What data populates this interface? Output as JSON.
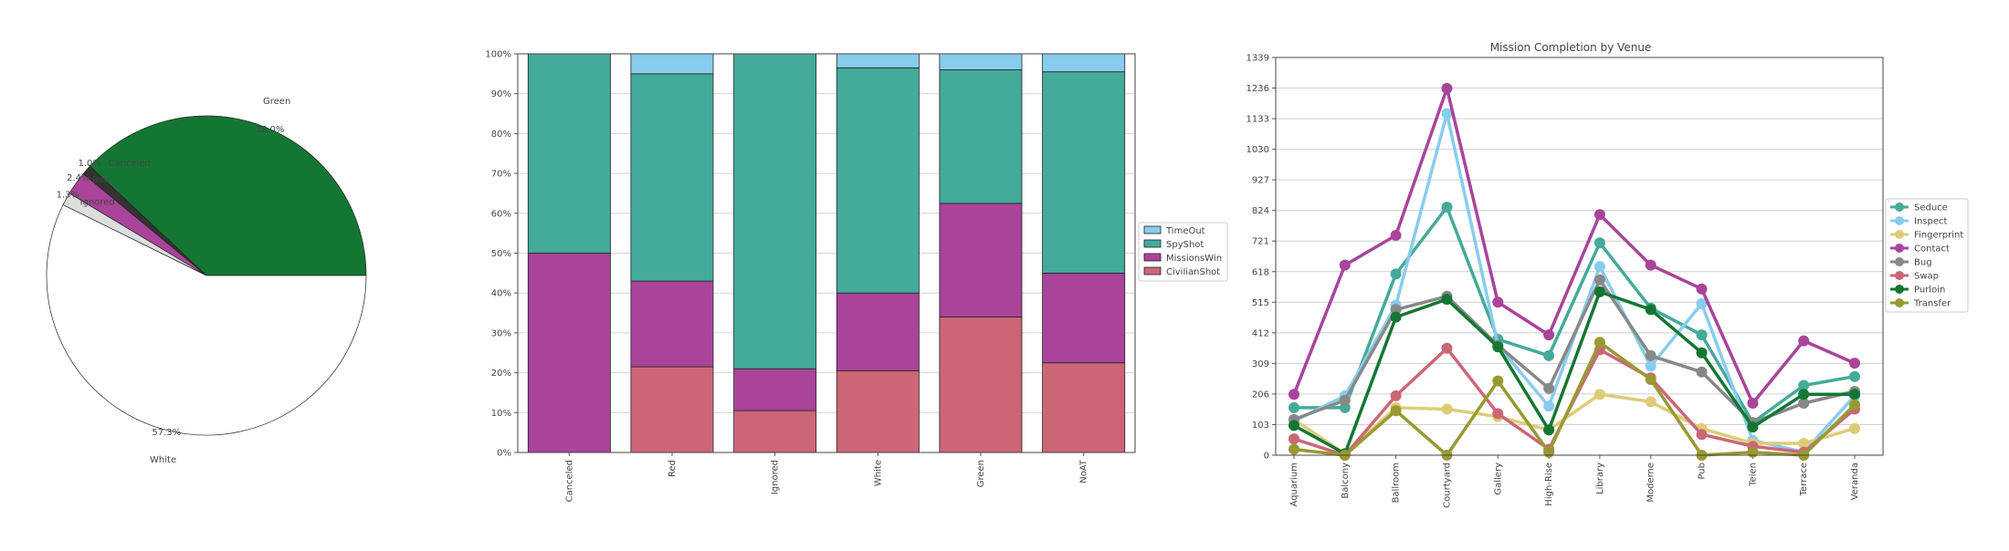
{
  "chart_data": [
    {
      "type": "pie",
      "slices": [
        {
          "label": "Green",
          "value": 38.0,
          "pct": "38.0%",
          "color": "#137733"
        },
        {
          "label": "Canceled",
          "value": 1.0,
          "pct": "1.0%",
          "color": "#333333"
        },
        {
          "label": "Red",
          "value": 2.4,
          "pct": "2.4%",
          "color": "#a9449a"
        },
        {
          "label": "Ignored",
          "value": 1.3,
          "pct": "1.3%",
          "color": "#dddddd"
        },
        {
          "label": "White",
          "value": 57.3,
          "pct": "57.3%",
          "color": "#ffffff"
        }
      ]
    },
    {
      "type": "bar",
      "stacked": true,
      "categories": [
        "Canceled",
        "Red",
        "Ignored",
        "White",
        "Green",
        "NoAT"
      ],
      "yticks": [
        "0%",
        "10%",
        "20%",
        "30%",
        "40%",
        "50%",
        "60%",
        "70%",
        "80%",
        "90%",
        "100%"
      ],
      "ylim": [
        0,
        100
      ],
      "legend_position": "right",
      "series": [
        {
          "name": "CivilianShot",
          "color": "#cc6677",
          "values": [
            0,
            21.5,
            10.5,
            20.5,
            34,
            22.5
          ]
        },
        {
          "name": "MissionsWin",
          "color": "#a9449a",
          "values": [
            50,
            21.5,
            10.5,
            19.5,
            28.5,
            22.5
          ]
        },
        {
          "name": "SpyShot",
          "color": "#44aa99",
          "values": [
            50,
            52,
            79,
            56.5,
            33.5,
            50.5
          ]
        },
        {
          "name": "TimeOut",
          "color": "#88ccee",
          "values": [
            0,
            5,
            0,
            3.5,
            4,
            4.5
          ]
        }
      ]
    },
    {
      "type": "line",
      "title": "Mission Completion by Venue",
      "categories": [
        "Aquarium",
        "Balcony",
        "Ballroom",
        "Courtyard",
        "Gallery",
        "High-Rise",
        "Library",
        "Moderne",
        "Pub",
        "Teien",
        "Terrace",
        "Veranda"
      ],
      "yticks": [
        "0",
        "103",
        "206",
        "309",
        "412",
        "515",
        "618",
        "721",
        "824",
        "927",
        "1030",
        "1133",
        "1236",
        "1339"
      ],
      "ylim": [
        0,
        1339
      ],
      "grid": "horizontal",
      "legend_position": "right",
      "series": [
        {
          "name": "Seduce",
          "color": "#44aa99",
          "values": [
            160,
            160,
            610,
            835,
            390,
            335,
            715,
            495,
            405,
            110,
            235,
            265
          ]
        },
        {
          "name": "Inspect",
          "color": "#88ccee",
          "values": [
            115,
            200,
            505,
            1150,
            370,
            165,
            635,
            300,
            510,
            50,
            10,
            200
          ]
        },
        {
          "name": "Fingerprint",
          "color": "#ddcc77",
          "values": [
            120,
            5,
            160,
            155,
            130,
            85,
            205,
            180,
            90,
            40,
            40,
            90
          ]
        },
        {
          "name": "Contact",
          "color": "#a9449a",
          "values": [
            205,
            640,
            740,
            1235,
            515,
            405,
            810,
            640,
            560,
            175,
            385,
            310
          ]
        },
        {
          "name": "Bug",
          "color": "#888888",
          "values": [
            120,
            185,
            490,
            535,
            370,
            225,
            590,
            335,
            280,
            110,
            175,
            215
          ]
        },
        {
          "name": "Swap",
          "color": "#cc6677",
          "values": [
            55,
            0,
            200,
            360,
            140,
            20,
            355,
            260,
            70,
            30,
            10,
            155
          ]
        },
        {
          "name": "Purloin",
          "color": "#137733",
          "values": [
            100,
            5,
            465,
            525,
            365,
            85,
            550,
            490,
            345,
            95,
            205,
            205
          ]
        },
        {
          "name": "Transfer",
          "color": "#999933",
          "values": [
            20,
            0,
            150,
            0,
            250,
            10,
            380,
            255,
            0,
            10,
            0,
            170
          ]
        }
      ]
    }
  ]
}
